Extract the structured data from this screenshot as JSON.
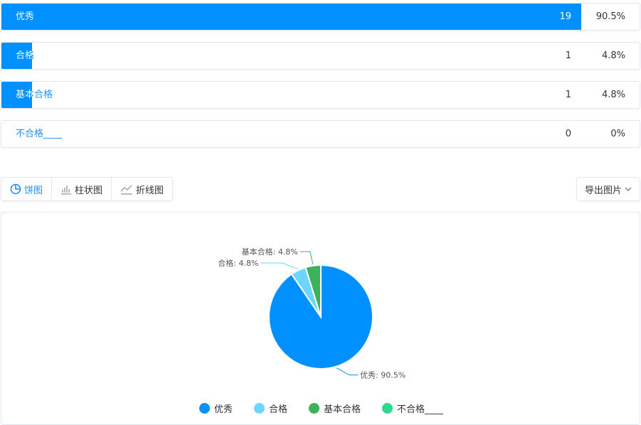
{
  "rows": [
    {
      "label": "优秀",
      "count": "19",
      "percent": "90.5%",
      "value": 90.5
    },
    {
      "label": "合格",
      "count": "1",
      "percent": "4.8%",
      "value": 4.8
    },
    {
      "label": "基本合格",
      "count": "1",
      "percent": "4.8%",
      "value": 4.8
    },
    {
      "label": "不合格____",
      "count": "0",
      "percent": "0%",
      "value": 0
    }
  ],
  "tabs": [
    {
      "label": "饼图",
      "icon": "pie-chart-icon",
      "active": true
    },
    {
      "label": "柱状图",
      "icon": "bar-chart-icon",
      "active": false
    },
    {
      "label": "折线图",
      "icon": "line-chart-icon",
      "active": false
    }
  ],
  "export_label": "导出图片",
  "chart_data": {
    "type": "pie",
    "categories": [
      "优秀",
      "合格",
      "基本合格",
      "不合格____"
    ],
    "values": [
      19,
      1,
      1,
      0
    ],
    "labels": [
      "优秀: 90.5%",
      "合格: 4.8%",
      "基本合格: 4.8%",
      ""
    ],
    "colors": [
      "#0090ff",
      "#6cd6ff",
      "#3cb35a",
      "#2bd98f"
    ],
    "legend": "bottom"
  }
}
